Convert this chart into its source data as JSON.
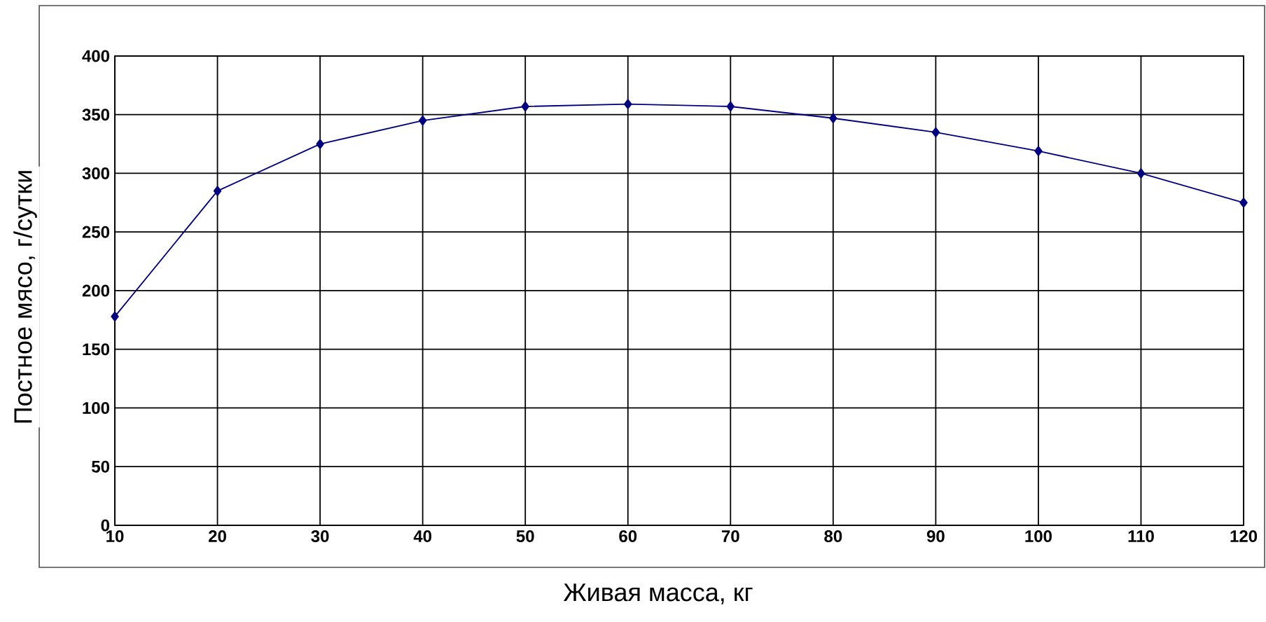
{
  "chart_data": {
    "type": "line",
    "xlabel": "Живая масса, кг",
    "ylabel": "Постное мясо, г/сутки",
    "x": [
      10,
      20,
      30,
      40,
      50,
      60,
      70,
      80,
      90,
      100,
      110,
      120
    ],
    "series": [
      {
        "color": "#000080",
        "values": [
          178,
          285,
          325,
          345,
          357,
          359,
          357,
          347,
          335,
          319,
          300,
          275
        ]
      }
    ],
    "xlim": [
      10,
      120
    ],
    "xticks": [
      10,
      20,
      30,
      40,
      50,
      60,
      70,
      80,
      90,
      100,
      110,
      120
    ],
    "ylim": [
      0,
      400
    ],
    "yticks": [
      0,
      50,
      100,
      150,
      200,
      250,
      300,
      350,
      400
    ],
    "grid": true,
    "marker": "diamond",
    "line_style": "solid"
  }
}
